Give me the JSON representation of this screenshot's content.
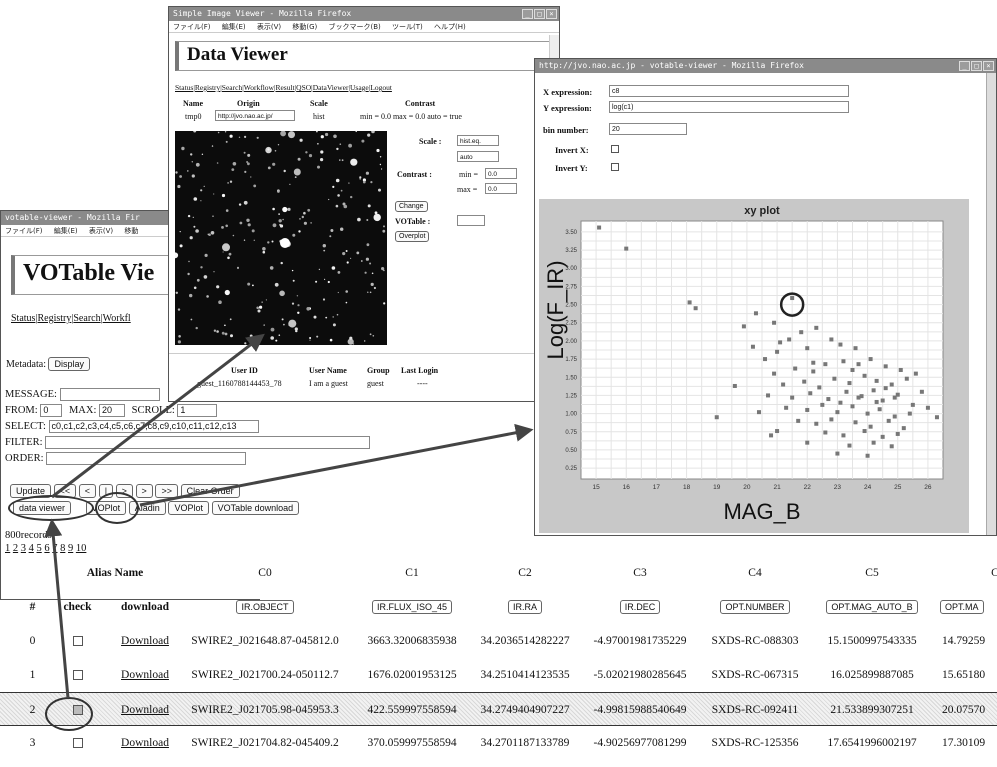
{
  "votable": {
    "window_title": "votable-viewer - Mozilla Fir",
    "menu": [
      "ファイル(F)",
      "編集(E)",
      "表示(V)",
      "移動"
    ],
    "heading": "VOTable Vie",
    "nav_links": [
      "Status",
      "Registry",
      "Search",
      "Workfl"
    ],
    "metadata_label": "Metadata:",
    "display_btn": "Display",
    "message_label": "MESSAGE:",
    "from_label": "FROM:",
    "from_value": "0",
    "max_label": "MAX:",
    "max_value": "20",
    "scroll_label": "SCROLL:",
    "scroll_value": "1",
    "select_label": "SELECT:",
    "select_value": "c0,c1,c2,c3,c4,c5,c6,c7,c8,c9,c10,c11,c12,c13",
    "filter_label": "FILTER:",
    "order_label": "ORDER:",
    "nav_buttons": [
      "Update",
      "<<",
      "<",
      "|",
      ">",
      ">",
      ">>"
    ],
    "clear_order": "Clear Order",
    "action_buttons": [
      "data viewer",
      "VOPlot",
      "Aladin",
      "VOPlot",
      "VOTable download"
    ],
    "records": "800records,",
    "pages": [
      "1",
      "2",
      "3",
      "4",
      "5",
      "6",
      "7",
      "8",
      "9",
      "10"
    ]
  },
  "table": {
    "group_header": "Alias Name",
    "col_aliases": [
      "C0",
      "C1",
      "C2",
      "C3",
      "C4",
      "C5",
      "C"
    ],
    "sub_headers": [
      "#",
      "check",
      "download"
    ],
    "field_buttons": [
      "IR.OBJECT",
      "IR.FLUX_ISO_45",
      "IR.RA",
      "IR.DEC",
      "OPT.NUMBER",
      "OPT.MAG_AUTO_B",
      "OPT.MA"
    ],
    "rows": [
      {
        "idx": "0",
        "dl": "Download",
        "c0": "SWIRE2_J021648.87-045812.0",
        "c1": "3663.32006835938",
        "c2": "34.2036514282227",
        "c3": "-4.97001981735229",
        "c4": "SXDS-RC-088303",
        "c5": "15.1500997543335",
        "c6": "14.79259"
      },
      {
        "idx": "1",
        "dl": "Download",
        "c0": "SWIRE2_J021700.24-050112.7",
        "c1": "1676.02001953125",
        "c2": "34.2510414123535",
        "c3": "-5.02021980285645",
        "c4": "SXDS-RC-067315",
        "c5": "16.025899887085",
        "c6": "15.65180"
      },
      {
        "idx": "2",
        "dl": "Download",
        "c0": "SWIRE2_J021705.98-045953.3",
        "c1": "422.559997558594",
        "c2": "34.2749404907227",
        "c3": "-4.99815988540649",
        "c4": "SXDS-RC-092411",
        "c5": "21.533899307251",
        "c6": "20.07570"
      },
      {
        "idx": "3",
        "dl": "Download",
        "c0": "SWIRE2_J021704.82-045409.2",
        "c1": "370.059997558594",
        "c2": "34.2701187133789",
        "c3": "-4.90256977081299",
        "c4": "SXDS-RC-125356",
        "c5": "17.6541996002197",
        "c6": "17.30109"
      }
    ]
  },
  "dataviewer": {
    "window_title": "Simple Image Viewer - Mozilla Firefox",
    "menu": [
      "ファイル(F)",
      "編集(E)",
      "表示(V)",
      "移動(G)",
      "ブックマーク(B)",
      "ツール(T)",
      "ヘルプ(H)"
    ],
    "heading": "Data Viewer",
    "nav_links": [
      "Status",
      "Registry",
      "Search",
      "Workflow",
      "Result",
      "QSO",
      "DataViewer",
      "Usage",
      "Logout"
    ],
    "headers": [
      "Name",
      "Origin",
      "Scale",
      "Contrast"
    ],
    "values": [
      "tmp0",
      "http://jvo.nao.ac.jp/",
      "hist",
      "min = 0.0 max = 0.0 auto = true"
    ],
    "scale_label": "Scale :",
    "scale_value": "hist.eq.",
    "auto_value": "auto",
    "contrast_label": "Contrast :",
    "min_label": "min =",
    "min_value": "0.0",
    "max_label": "max =",
    "max_value": "0.0",
    "change_btn": "Change",
    "votable_label": "VOTable :",
    "overplot_btn": "Overplot",
    "user_headers": [
      "User ID",
      "User Name",
      "Group",
      "Last Login"
    ],
    "user_values": [
      "guest_1160788144453_78",
      "I am a guest",
      "guest",
      "----"
    ]
  },
  "plotwin": {
    "window_title": "http://jvo.nao.ac.jp - votable-viewer - Mozilla Firefox",
    "x_expr_label": "X expression:",
    "x_expr_value": "c8",
    "y_expr_label": "Y expression:",
    "y_expr_value": "log(c1)",
    "bin_label": "bin number:",
    "bin_value": "20",
    "invert_x_label": "Invert X:",
    "invert_y_label": "Invert Y:"
  },
  "chart_data": {
    "type": "scatter",
    "title": "xy plot",
    "xlabel": "MAG_B",
    "ylabel": "Log(F_IR)",
    "xlim": [
      14.5,
      26.5
    ],
    "ylim": [
      0.1,
      3.65
    ],
    "x_ticks": [
      "15",
      "16",
      "17",
      "18",
      "19",
      "20",
      "21",
      "22",
      "23",
      "24",
      "25",
      "26"
    ],
    "y_ticks": [
      "0.25",
      "0.50",
      "0.75",
      "1.00",
      "1.25",
      "1.50",
      "1.75",
      "2.00",
      "2.25",
      "2.50",
      "2.75",
      "3.00",
      "3.25",
      "3.50"
    ],
    "grid": true,
    "highlight": {
      "x": 21.5,
      "y": 2.5
    },
    "points": [
      [
        15.1,
        3.56
      ],
      [
        16.0,
        3.27
      ],
      [
        18.1,
        2.53
      ],
      [
        18.3,
        2.45
      ],
      [
        19.9,
        2.2
      ],
      [
        20.3,
        2.38
      ],
      [
        20.9,
        2.25
      ],
      [
        21.5,
        2.59
      ],
      [
        20.2,
        1.92
      ],
      [
        21.4,
        2.02
      ],
      [
        21.8,
        2.12
      ],
      [
        22.3,
        2.18
      ],
      [
        20.6,
        1.75
      ],
      [
        21.0,
        1.85
      ],
      [
        22.0,
        1.9
      ],
      [
        22.8,
        2.02
      ],
      [
        23.1,
        1.95
      ],
      [
        23.6,
        1.9
      ],
      [
        20.9,
        1.55
      ],
      [
        21.6,
        1.62
      ],
      [
        22.2,
        1.58
      ],
      [
        22.6,
        1.68
      ],
      [
        23.2,
        1.72
      ],
      [
        23.7,
        1.68
      ],
      [
        24.1,
        1.75
      ],
      [
        24.6,
        1.65
      ],
      [
        25.1,
        1.6
      ],
      [
        25.6,
        1.55
      ],
      [
        21.2,
        1.4
      ],
      [
        21.9,
        1.44
      ],
      [
        22.4,
        1.36
      ],
      [
        22.9,
        1.48
      ],
      [
        23.4,
        1.42
      ],
      [
        23.9,
        1.52
      ],
      [
        24.3,
        1.45
      ],
      [
        24.8,
        1.4
      ],
      [
        25.3,
        1.48
      ],
      [
        25.8,
        1.3
      ],
      [
        20.7,
        1.25
      ],
      [
        21.5,
        1.22
      ],
      [
        22.1,
        1.28
      ],
      [
        22.7,
        1.2
      ],
      [
        23.3,
        1.3
      ],
      [
        23.8,
        1.24
      ],
      [
        24.2,
        1.32
      ],
      [
        24.5,
        1.18
      ],
      [
        25.0,
        1.26
      ],
      [
        25.5,
        1.12
      ],
      [
        26.0,
        1.08
      ],
      [
        20.4,
        1.02
      ],
      [
        21.3,
        1.08
      ],
      [
        22.0,
        1.05
      ],
      [
        22.5,
        1.12
      ],
      [
        23.0,
        1.02
      ],
      [
        23.5,
        1.1
      ],
      [
        24.0,
        1.0
      ],
      [
        24.4,
        1.06
      ],
      [
        24.9,
        0.96
      ],
      [
        25.4,
        1.0
      ],
      [
        26.3,
        0.95
      ],
      [
        21.7,
        0.9
      ],
      [
        22.3,
        0.86
      ],
      [
        22.8,
        0.92
      ],
      [
        23.6,
        0.88
      ],
      [
        24.1,
        0.82
      ],
      [
        24.7,
        0.9
      ],
      [
        25.2,
        0.8
      ],
      [
        21.0,
        0.76
      ],
      [
        22.6,
        0.74
      ],
      [
        23.2,
        0.7
      ],
      [
        23.9,
        0.76
      ],
      [
        24.5,
        0.68
      ],
      [
        25.0,
        0.72
      ],
      [
        22.0,
        0.6
      ],
      [
        23.4,
        0.56
      ],
      [
        24.2,
        0.6
      ],
      [
        24.8,
        0.55
      ],
      [
        23.0,
        0.45
      ],
      [
        24.0,
        0.42
      ],
      [
        19.0,
        0.95
      ],
      [
        19.6,
        1.38
      ],
      [
        20.8,
        0.7
      ],
      [
        23.7,
        1.22
      ],
      [
        24.3,
        1.16
      ],
      [
        23.1,
        1.15
      ],
      [
        24.6,
        1.35
      ],
      [
        23.5,
        1.6
      ],
      [
        24.9,
        1.22
      ],
      [
        22.2,
        1.7
      ],
      [
        21.1,
        1.98
      ]
    ]
  }
}
